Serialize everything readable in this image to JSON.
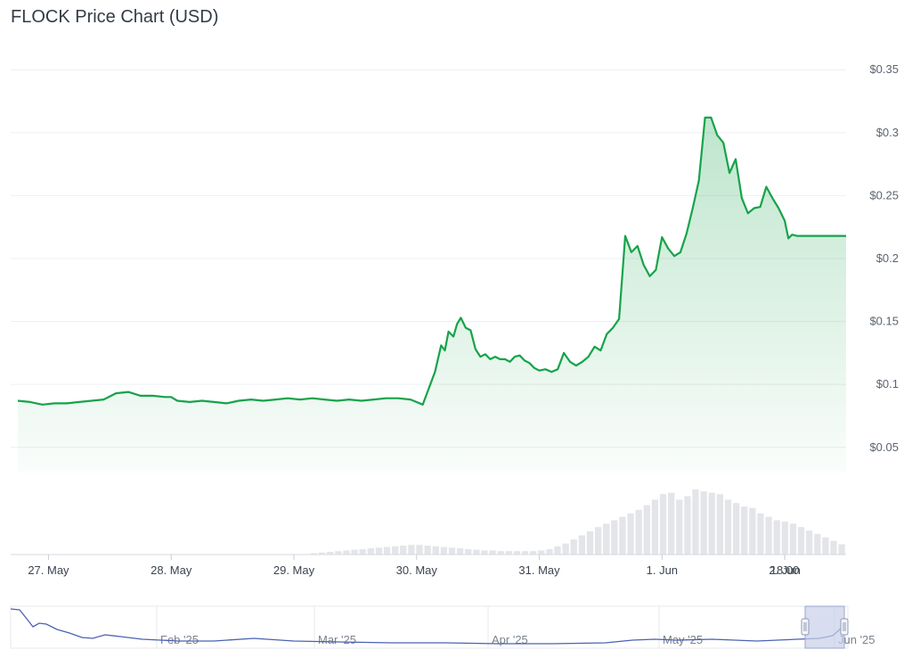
{
  "header": {
    "title": "FLOCK Price Chart (USD)"
  },
  "colors": {
    "line": "#16a34a",
    "fill": "#16a34a",
    "grid": "#eceff3",
    "volume": "#e3e5e8",
    "navigator": "#4b62b3",
    "navigator_window": "#c7cfe8"
  },
  "chart_data": {
    "type": "area",
    "title": "FLOCK Price Chart (USD)",
    "xlabel": "",
    "ylabel": "",
    "y_ticks": [
      "$0.05",
      "$0.1",
      "$0.15",
      "$0.2",
      "$0.25",
      "$0.3",
      "$0.35"
    ],
    "ylim": [
      0.03,
      0.37
    ],
    "x_ticks": [
      "27. May",
      "28. May",
      "29. May",
      "30. May",
      "31. May",
      "1. Jun",
      "2. Jun",
      "18:00"
    ],
    "xlim": [
      -0.25,
      6.5
    ],
    "grid": true,
    "legend": "none",
    "series": [
      {
        "x": [
          -0.25,
          -0.15,
          -0.05,
          0.05,
          0.15,
          0.25,
          0.35,
          0.45,
          0.55,
          0.65,
          0.75,
          0.85,
          0.95,
          1.0,
          1.05,
          1.15,
          1.25,
          1.35,
          1.45,
          1.55,
          1.65,
          1.75,
          1.85,
          1.95,
          2.05,
          2.15,
          2.25,
          2.35,
          2.45,
          2.55,
          2.65,
          2.75,
          2.85,
          2.95,
          3.05,
          3.15,
          3.2,
          3.23,
          3.26,
          3.3,
          3.33,
          3.36,
          3.4,
          3.44,
          3.48,
          3.52,
          3.56,
          3.6,
          3.64,
          3.68,
          3.72,
          3.76,
          3.8,
          3.84,
          3.88,
          3.92,
          3.96,
          4.0,
          4.05,
          4.1,
          4.15,
          4.2,
          4.25,
          4.3,
          4.35,
          4.4,
          4.45,
          4.5,
          4.55,
          4.6,
          4.65,
          4.7,
          4.75,
          4.8,
          4.85,
          4.9,
          4.95,
          5.0,
          5.05,
          5.1,
          5.15,
          5.2,
          5.25,
          5.3,
          5.35,
          5.4,
          5.45,
          5.5,
          5.55,
          5.6,
          5.65,
          5.7,
          5.75,
          5.8,
          5.85,
          5.9,
          5.95,
          6.0,
          6.03,
          6.06,
          6.1,
          6.13,
          6.16,
          6.2,
          6.24,
          6.28,
          6.32,
          6.36,
          6.4,
          6.45,
          6.5
        ],
        "y": [
          0.087,
          0.086,
          0.084,
          0.085,
          0.085,
          0.086,
          0.087,
          0.088,
          0.093,
          0.094,
          0.091,
          0.091,
          0.09,
          0.09,
          0.087,
          0.086,
          0.087,
          0.086,
          0.085,
          0.087,
          0.088,
          0.087,
          0.088,
          0.089,
          0.088,
          0.089,
          0.088,
          0.087,
          0.088,
          0.087,
          0.088,
          0.089,
          0.089,
          0.088,
          0.084,
          0.11,
          0.131,
          0.127,
          0.142,
          0.138,
          0.148,
          0.153,
          0.145,
          0.143,
          0.128,
          0.122,
          0.124,
          0.12,
          0.122,
          0.12,
          0.12,
          0.118,
          0.122,
          0.123,
          0.119,
          0.117,
          0.113,
          0.111,
          0.112,
          0.11,
          0.112,
          0.125,
          0.118,
          0.115,
          0.118,
          0.122,
          0.13,
          0.127,
          0.14,
          0.145,
          0.152,
          0.218,
          0.205,
          0.21,
          0.195,
          0.186,
          0.191,
          0.217,
          0.208,
          0.202,
          0.205,
          0.22,
          0.24,
          0.262,
          0.312,
          0.312,
          0.298,
          0.292,
          0.268,
          0.279,
          0.248,
          0.236,
          0.24,
          0.241,
          0.257,
          0.248,
          0.24,
          0.23,
          0.216,
          0.219,
          0.218,
          0.218,
          0.218,
          0.218,
          0.218,
          0.218,
          0.218,
          0.218,
          0.218,
          0.218,
          0.218
        ]
      }
    ],
    "volume": [
      0,
      0,
      0,
      0,
      0,
      0,
      0,
      0,
      0,
      0,
      0,
      0,
      0,
      0,
      0,
      0,
      0,
      0,
      0,
      0,
      0,
      0,
      0,
      0,
      0,
      0,
      0,
      0,
      0,
      0,
      0,
      0,
      0,
      0,
      0,
      0,
      0.02,
      0.03,
      0.04,
      0.05,
      0.06,
      0.07,
      0.08,
      0.09,
      0.1,
      0.11,
      0.12,
      0.13,
      0.14,
      0.14,
      0.13,
      0.12,
      0.11,
      0.1,
      0.09,
      0.08,
      0.07,
      0.06,
      0.06,
      0.05,
      0.05,
      0.05,
      0.05,
      0.05,
      0.06,
      0.08,
      0.12,
      0.16,
      0.22,
      0.28,
      0.34,
      0.4,
      0.45,
      0.5,
      0.55,
      0.6,
      0.65,
      0.72,
      0.8,
      0.88,
      0.9,
      0.8,
      0.85,
      0.95,
      0.92,
      0.9,
      0.88,
      0.8,
      0.75,
      0.7,
      0.68,
      0.6,
      0.55,
      0.5,
      0.48,
      0.45,
      0.4,
      0.35,
      0.3,
      0.25,
      0.2,
      0.15
    ],
    "navigator": {
      "labels": [
        "Feb '25",
        "Mar '25",
        "Apr '25",
        "May '25",
        "Jun '25"
      ]
    }
  }
}
